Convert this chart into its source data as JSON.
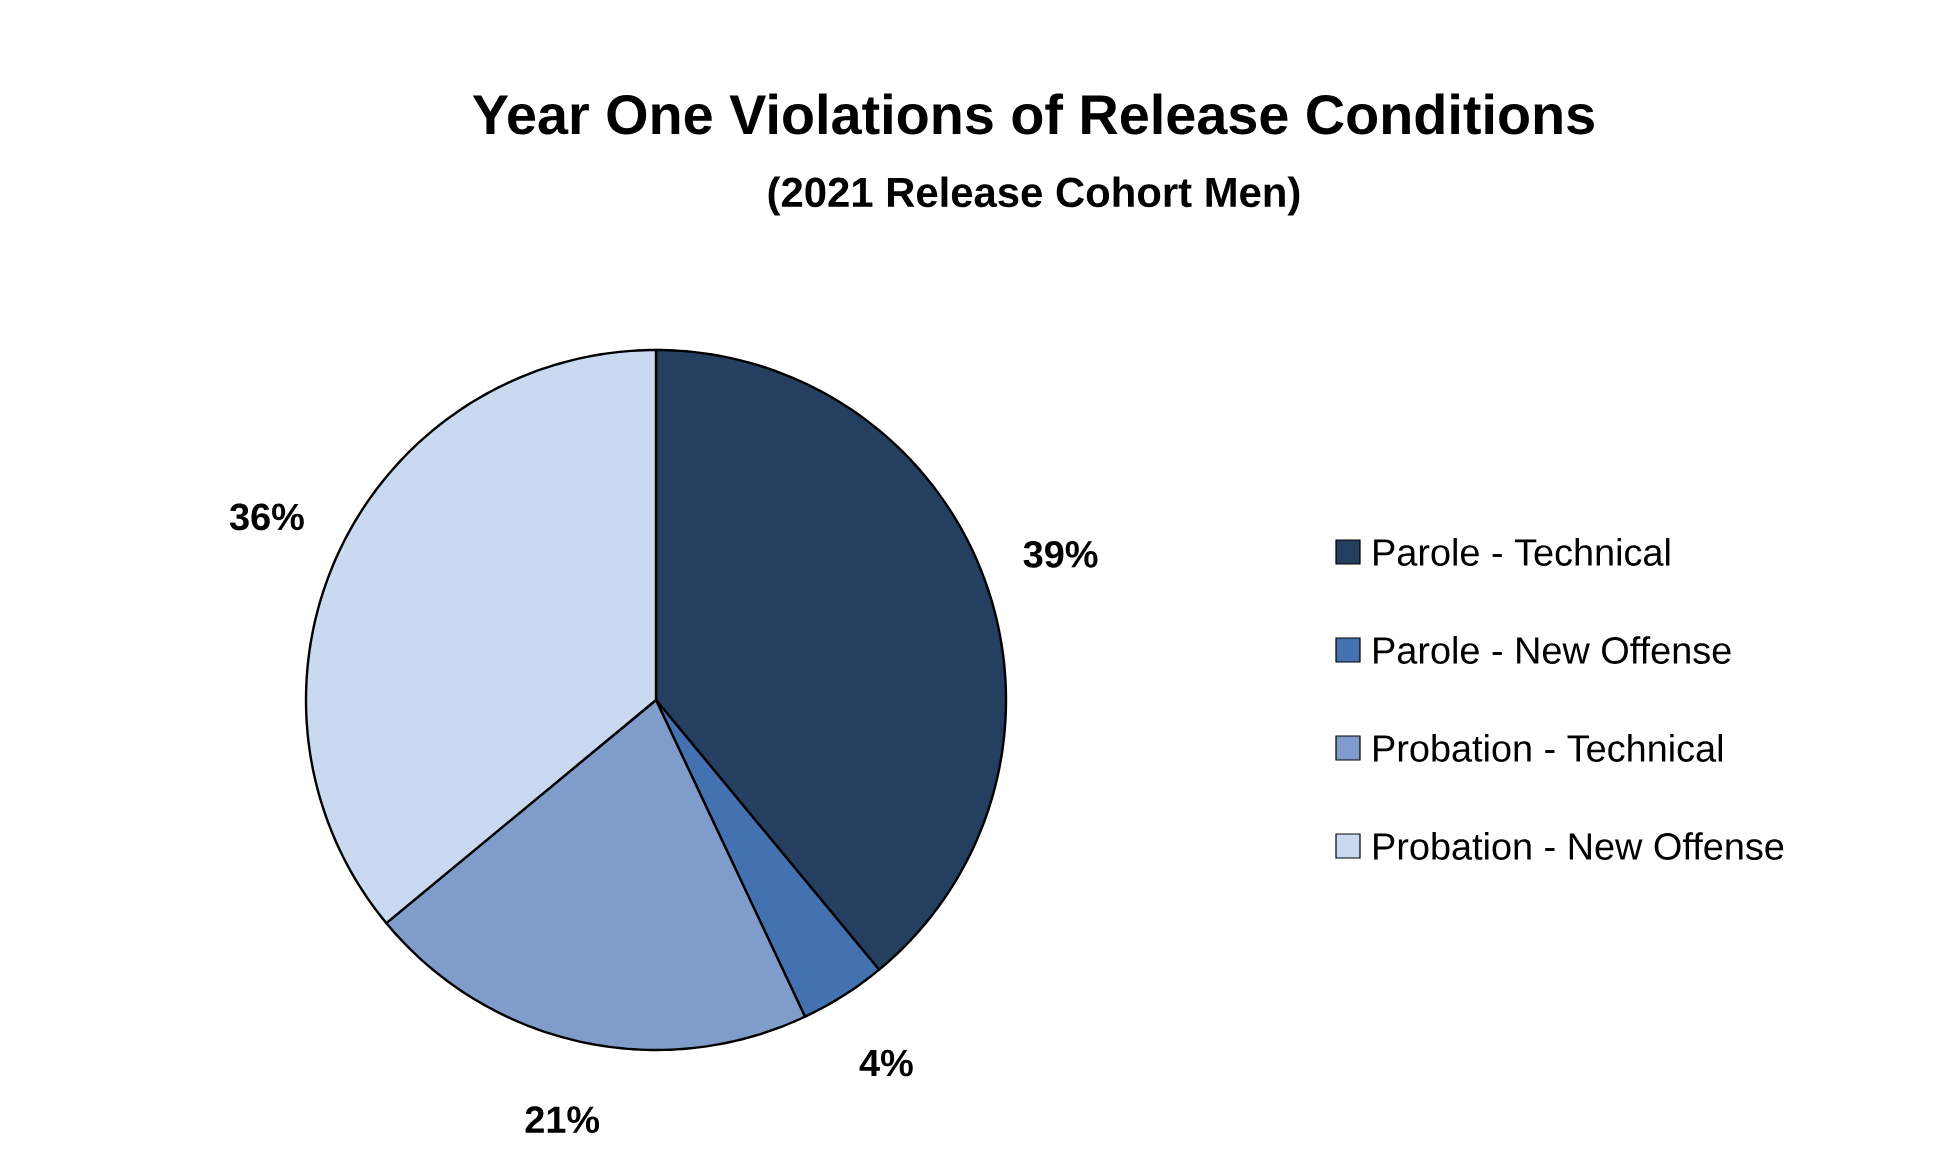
{
  "chart_data": {
    "type": "pie",
    "title": "Year One Violations of Release Conditions",
    "subtitle": "(2021 Release Cohort Men)",
    "categories": [
      "Parole - Technical",
      "Parole - New Offense",
      "Probation - Technical",
      "Probation - New Offense"
    ],
    "values": [
      39,
      4,
      21,
      36
    ],
    "colors": [
      "#243f60",
      "#4472b0",
      "#7f9ccb",
      "#c8d9f0"
    ],
    "value_labels": [
      "39%",
      "4%",
      "21%",
      "36%"
    ],
    "legend": "right"
  }
}
